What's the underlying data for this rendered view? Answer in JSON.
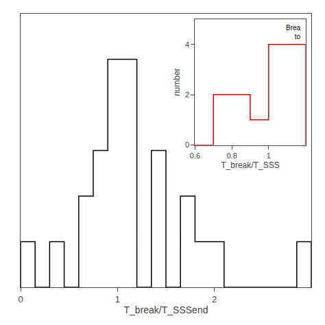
{
  "chart_data": [
    {
      "type": "histogram",
      "xlabel": "T_break/T_SSSend",
      "bins": [
        0.0,
        0.15,
        0.3,
        0.45,
        0.6,
        0.75,
        0.9,
        1.05,
        1.2,
        1.35,
        1.5,
        1.65,
        1.8,
        1.95,
        2.1,
        2.25,
        2.4,
        2.55,
        2.7,
        2.85,
        3.0
      ],
      "values": [
        1,
        0,
        1,
        0,
        2,
        3,
        5,
        5,
        0,
        3,
        0,
        2,
        1,
        1,
        0,
        0,
        0,
        0,
        0,
        1
      ],
      "color": "#000000",
      "xlim": [
        0,
        3.0
      ],
      "ylim": [
        0,
        6
      ],
      "xticks": [
        0,
        1,
        2
      ],
      "tick_labels": "x",
      "grid": false
    },
    {
      "type": "histogram",
      "xlabel": "T_break/T_SSS",
      "ylabel": "number",
      "bins": [
        0.6,
        0.7,
        0.8,
        0.9,
        1.0,
        1.1,
        1.2
      ],
      "values": [
        0,
        2,
        2,
        1,
        4,
        4
      ],
      "color": "#cc0000",
      "xlim": [
        0.6,
        1.2
      ],
      "ylim": [
        0,
        5
      ],
      "xticks": [
        0.6,
        0.8,
        1
      ],
      "yticks": [
        0,
        2,
        4
      ],
      "annotations": [
        "Brea\nto"
      ],
      "grid": false
    }
  ]
}
